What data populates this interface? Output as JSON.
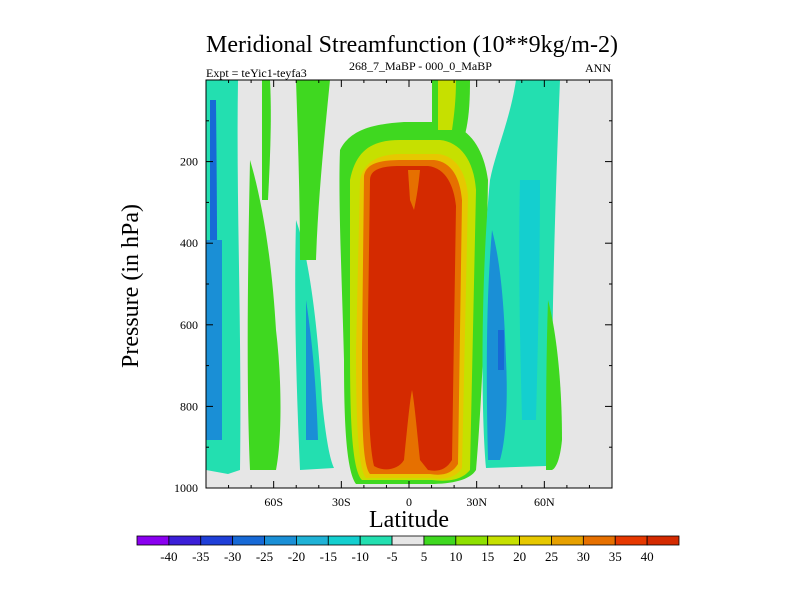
{
  "chart_data": {
    "type": "heatmap",
    "title": "Meridional Streamfunction (10**9kg/m-2)",
    "subtitle_left": "Expt = teYic1-teyfa3",
    "subtitle_super": "268_7_MaBP - 000_0_MaBP",
    "subtitle_right": "ANN",
    "xlabel": "Latitude",
    "ylabel": "Pressure (in hPa)",
    "xlim": [
      -90,
      90
    ],
    "ylim": [
      1000,
      0
    ],
    "xticks": [
      {
        "value": -60,
        "label": "60S"
      },
      {
        "value": -30,
        "label": "30S"
      },
      {
        "value": 0,
        "label": "0"
      },
      {
        "value": 30,
        "label": "30N"
      },
      {
        "value": 60,
        "label": "60N"
      }
    ],
    "yticks": [
      {
        "value": 200,
        "label": "200"
      },
      {
        "value": 400,
        "label": "400"
      },
      {
        "value": 600,
        "label": "600"
      },
      {
        "value": 800,
        "label": "800"
      },
      {
        "value": 1000,
        "label": "1000"
      }
    ],
    "colorbar": {
      "levels": [
        "-40",
        "-35",
        "-30",
        "-25",
        "-20",
        "-15",
        "-10",
        "-5",
        "5",
        "10",
        "15",
        "20",
        "25",
        "30",
        "35",
        "40"
      ],
      "colors": [
        "#8a00f0",
        "#3b1fd8",
        "#1f3fd8",
        "#1769d6",
        "#1a8fd6",
        "#1fb2d6",
        "#14cfcf",
        "#23dfb0",
        "#e6e6e6",
        "#3fd820",
        "#8ee000",
        "#c6e000",
        "#e6c800",
        "#e6a000",
        "#e67000",
        "#e63800",
        "#d42a00"
      ]
    },
    "regions": [
      {
        "name": "positive-core-max",
        "level": 40,
        "lat_range": [
          -12,
          20
        ],
        "p_range": [
          200,
          980
        ]
      },
      {
        "name": "sh-negative-band",
        "level": -25,
        "lat_range": [
          -86,
          -80
        ],
        "p_range": [
          100,
          950
        ]
      },
      {
        "name": "sh-positive-band",
        "level": 10,
        "lat_range": [
          -70,
          -55
        ],
        "p_range": [
          200,
          950
        ]
      },
      {
        "name": "sh-midlat-negative",
        "level": -15,
        "lat_range": [
          -40,
          -30
        ],
        "p_range": [
          500,
          960
        ]
      },
      {
        "name": "nh-negative-band",
        "level": -15,
        "lat_range": [
          33,
          55
        ],
        "p_range": [
          200,
          960
        ]
      },
      {
        "name": "nh-positive-band",
        "level": 10,
        "lat_range": [
          55,
          62
        ],
        "p_range": [
          300,
          950
        ]
      }
    ]
  }
}
